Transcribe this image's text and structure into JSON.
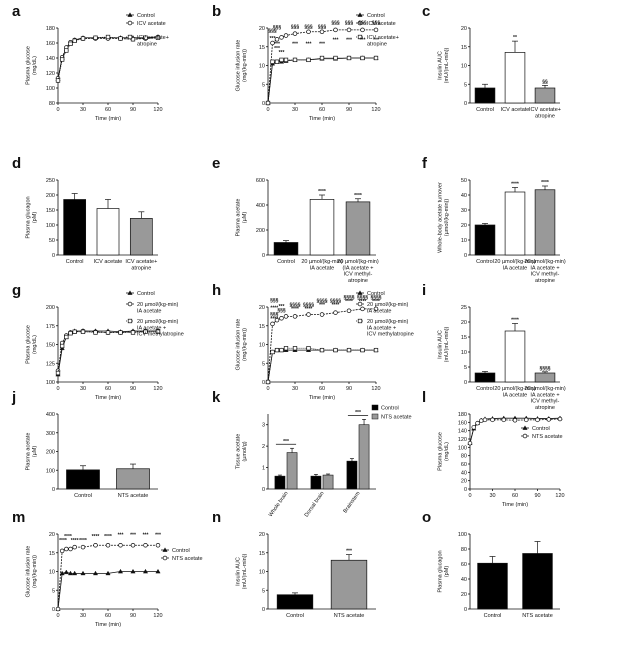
{
  "chart_data": [
    {
      "panel": "a",
      "type": "line",
      "xlabel": "Time (min)",
      "ylabel": "Plasma glucose\n(mg/dL)",
      "xlim": [
        0,
        120
      ],
      "ylim": [
        80,
        180
      ],
      "xticks": [
        0,
        30,
        60,
        90,
        120
      ],
      "yticks": [
        80,
        100,
        120,
        140,
        160,
        180
      ],
      "x": [
        0,
        5,
        10,
        15,
        20,
        30,
        45,
        60,
        75,
        90,
        105,
        120
      ],
      "series": [
        {
          "name": "Control",
          "marker": "filled-triangle",
          "values": [
            112,
            140,
            152,
            160,
            164,
            167,
            167,
            167,
            167,
            167,
            167,
            168
          ]
        },
        {
          "name": "ICV acetate",
          "marker": "open-circle",
          "values": [
            113,
            141,
            154,
            161,
            164,
            166,
            166,
            166,
            166,
            165,
            166,
            168
          ]
        },
        {
          "name": "ICV acetate+\natropine",
          "marker": "open-square",
          "values": [
            110,
            138,
            150,
            159,
            163,
            166,
            167,
            168,
            166,
            165,
            167,
            167
          ]
        }
      ]
    },
    {
      "panel": "b",
      "type": "line",
      "xlabel": "Time (min)",
      "ylabel": "Glucose infusion rate\n(mg/(kg-min))",
      "xlim": [
        0,
        120
      ],
      "ylim": [
        0,
        20
      ],
      "xticks": [
        0,
        30,
        60,
        90,
        120
      ],
      "yticks": [
        0,
        5,
        10,
        15,
        20
      ],
      "x": [
        0,
        5,
        10,
        15,
        20,
        30,
        45,
        60,
        75,
        90,
        105,
        120
      ],
      "series": [
        {
          "name": "Control",
          "marker": "filled-triangle",
          "values": [
            0,
            10.5,
            11,
            11,
            11.2,
            11.5,
            11.5,
            11.8,
            11.8,
            12,
            12,
            12
          ]
        },
        {
          "name": "ICV acetate",
          "marker": "open-circle",
          "values": [
            0,
            16,
            17,
            17.5,
            18,
            18.5,
            19,
            19,
            19.5,
            19.5,
            19.5,
            19.5
          ]
        },
        {
          "name": "ICV acetate+\natropine",
          "marker": "open-square",
          "values": [
            0,
            11,
            11,
            11.5,
            11.5,
            11.5,
            11.5,
            12,
            12,
            12,
            12,
            12
          ]
        }
      ],
      "annotations": [
        {
          "x": 5,
          "y": 18.8,
          "text": "§§§"
        },
        {
          "x": 10,
          "y": 19.8,
          "text": "§§§"
        },
        {
          "x": 5,
          "y": 16.8,
          "text": "***"
        },
        {
          "x": 10,
          "y": 15.3,
          "text": "***"
        },
        {
          "x": 10,
          "y": 14.2,
          "text": "***"
        },
        {
          "x": 15,
          "y": 13.1,
          "text": "***"
        },
        {
          "x": 30,
          "y": 19.9,
          "text": "§§§"
        },
        {
          "x": 45,
          "y": 19.9,
          "text": "§§§"
        },
        {
          "x": 60,
          "y": 19.9,
          "text": "§§§"
        },
        {
          "x": 75,
          "y": 20.9,
          "text": "§§§"
        },
        {
          "x": 90,
          "y": 20.9,
          "text": "§§§"
        },
        {
          "x": 105,
          "y": 20.9,
          "text": "§§§"
        },
        {
          "x": 120,
          "y": 20.9,
          "text": "§§§"
        },
        {
          "x": 30,
          "y": 15.4,
          "text": "***"
        },
        {
          "x": 45,
          "y": 15.4,
          "text": "***"
        },
        {
          "x": 60,
          "y": 15.4,
          "text": "***"
        },
        {
          "x": 75,
          "y": 16.4,
          "text": "***"
        },
        {
          "x": 90,
          "y": 16.4,
          "text": "***"
        },
        {
          "x": 105,
          "y": 16.4,
          "text": "***"
        },
        {
          "x": 120,
          "y": 16.4,
          "text": "***"
        }
      ]
    },
    {
      "panel": "c",
      "type": "bar",
      "ylabel": "Insulin AUC\n(mU/(mL-min))",
      "ylim": [
        0,
        20
      ],
      "yticks": [
        0,
        5,
        10,
        15,
        20
      ],
      "categories": [
        "Control",
        "ICV acetate",
        "ICV acetate+\natropine"
      ],
      "values": [
        4,
        13.5,
        4
      ],
      "errors": [
        1,
        3,
        0.7
      ],
      "fills": [
        "#000000",
        "#ffffff",
        "#999999"
      ],
      "bar_labels": [
        "",
        "**",
        "§§"
      ]
    },
    {
      "panel": "d",
      "type": "bar",
      "ylabel": "Plasma glucagon\n(pM)",
      "ylim": [
        0,
        250
      ],
      "yticks": [
        0,
        50,
        100,
        150,
        200,
        250
      ],
      "categories": [
        "Control",
        "ICV acetate",
        "ICV acetate+\natropine"
      ],
      "values": [
        185,
        155,
        122
      ],
      "errors": [
        20,
        30,
        22
      ],
      "fills": [
        "#000000",
        "#ffffff",
        "#999999"
      ],
      "bar_labels": [
        "",
        "",
        ""
      ]
    },
    {
      "panel": "e",
      "type": "bar",
      "ylabel": "Plasma acetate\n(µM)",
      "ylim": [
        0,
        600
      ],
      "yticks": [
        0,
        200,
        400,
        600
      ],
      "categories": [
        "Control",
        "20 µmol/(kg-min)\nIA acetate",
        "20 µmol/(kg-min)\n(IA acetate +\nICV methyl-\natropine"
      ],
      "values": [
        100,
        445,
        425
      ],
      "errors": [
        15,
        35,
        25
      ],
      "fills": [
        "#000000",
        "#ffffff",
        "#999999"
      ],
      "bar_labels": [
        "",
        "****",
        "****"
      ]
    },
    {
      "panel": "f",
      "type": "bar",
      "ylabel": "Whole-body acetate turnover\n(µmol/(kg-min))",
      "ylim": [
        0,
        50
      ],
      "yticks": [
        0,
        10,
        20,
        30,
        40,
        50
      ],
      "categories": [
        "Control",
        "20 µmol/(kg-min)\nIA acetate",
        "20 µmol/(kg-min)\nIA acetate +\nICV methyl-\natropine"
      ],
      "values": [
        20,
        42,
        43.5
      ],
      "errors": [
        1,
        3,
        2.5
      ],
      "fills": [
        "#000000",
        "#ffffff",
        "#999999"
      ],
      "bar_labels": [
        "",
        "****",
        "****"
      ]
    },
    {
      "panel": "g",
      "type": "line",
      "xlabel": "Time (min)",
      "ylabel": "Plasma glucose\n(mg/dL)",
      "xlim": [
        0,
        120
      ],
      "ylim": [
        100,
        200
      ],
      "xticks": [
        0,
        30,
        60,
        90,
        120
      ],
      "yticks": [
        100,
        125,
        150,
        175,
        200
      ],
      "x": [
        0,
        5,
        10,
        15,
        20,
        30,
        45,
        60,
        75,
        90,
        105,
        120
      ],
      "series": [
        {
          "name": "Control",
          "marker": "filled-triangle",
          "values": [
            110,
            145,
            160,
            166,
            168,
            168,
            168,
            168,
            167,
            168,
            168,
            168
          ]
        },
        {
          "name": "20 µmol/(kg-min)\nIA acetate",
          "marker": "open-circle",
          "values": [
            115,
            152,
            162,
            166,
            167,
            168,
            167,
            166,
            166,
            167,
            168,
            168
          ]
        },
        {
          "name": "20 µmol/(kg-min)\nIA acetate +\nICV methylatropine",
          "marker": "open-square",
          "values": [
            112,
            148,
            160,
            165,
            167,
            167,
            166,
            166,
            166,
            166,
            167,
            167
          ]
        }
      ]
    },
    {
      "panel": "h",
      "type": "line",
      "xlabel": "Time (min)",
      "ylabel": "Glucose infusion rate\n(mg/(kg-min))",
      "xlim": [
        0,
        120
      ],
      "ylim": [
        0,
        20
      ],
      "xticks": [
        0,
        30,
        60,
        90,
        120
      ],
      "yticks": [
        0,
        5,
        10,
        15,
        20
      ],
      "x": [
        0,
        5,
        10,
        15,
        20,
        30,
        45,
        60,
        75,
        90,
        105,
        120
      ],
      "series": [
        {
          "name": "Control",
          "marker": "filled-triangle",
          "values": [
            0,
            8,
            8.5,
            8.5,
            8.5,
            8.5,
            8.5,
            8.5,
            8.5,
            8.5,
            8.5,
            8.5
          ]
        },
        {
          "name": "20 µmol/(kg-min)\nIA acetate",
          "marker": "open-circle",
          "values": [
            0,
            15.5,
            16.5,
            17,
            17.5,
            17.5,
            18,
            18,
            18.5,
            19,
            19.5,
            19.5
          ]
        },
        {
          "name": "20 µmol/(kg-min)\nIA acetate +\nICV methylatropine",
          "marker": "open-square",
          "values": [
            0,
            8,
            8.5,
            8.5,
            9,
            9,
            9,
            8.5,
            8.5,
            8.5,
            8.5,
            8.5
          ]
        }
      ],
      "annotations": [
        {
          "x": 7,
          "y": 21.3,
          "text": "§§§"
        },
        {
          "x": 7,
          "y": 19.4,
          "text": "****"
        },
        {
          "x": 7,
          "y": 17.6,
          "text": "§§§"
        },
        {
          "x": 7,
          "y": 16.4,
          "text": "****"
        },
        {
          "x": 15,
          "y": 19.8,
          "text": "***"
        },
        {
          "x": 15,
          "y": 18.7,
          "text": "§§§"
        },
        {
          "x": 30,
          "y": 20.2,
          "text": "§§§§"
        },
        {
          "x": 45,
          "y": 20.2,
          "text": "§§§§"
        },
        {
          "x": 60,
          "y": 21.2,
          "text": "§§§§"
        },
        {
          "x": 75,
          "y": 21.2,
          "text": "§§§§"
        },
        {
          "x": 90,
          "y": 22.2,
          "text": "§§§§"
        },
        {
          "x": 105,
          "y": 22.2,
          "text": "§§§§"
        },
        {
          "x": 120,
          "y": 22.2,
          "text": "§§§§"
        },
        {
          "x": 30,
          "y": 19.1,
          "text": "****"
        },
        {
          "x": 45,
          "y": 19.1,
          "text": "****"
        },
        {
          "x": 60,
          "y": 20.1,
          "text": "***"
        },
        {
          "x": 75,
          "y": 20.1,
          "text": "****"
        },
        {
          "x": 90,
          "y": 21.1,
          "text": "****"
        },
        {
          "x": 105,
          "y": 21.1,
          "text": "****"
        },
        {
          "x": 120,
          "y": 21.1,
          "text": "****"
        }
      ]
    },
    {
      "panel": "i",
      "type": "bar",
      "ylabel": "Insulin AUC\n(mU/(mL-min))",
      "ylim": [
        0,
        25
      ],
      "yticks": [
        0,
        5,
        10,
        15,
        20,
        25
      ],
      "categories": [
        "Control",
        "20 µmol/(kg-min)\nIA acetate",
        "20 µmol/(kg-min)\nIA acetate +\nICV methyl-\natropine"
      ],
      "values": [
        3,
        17,
        3
      ],
      "errors": [
        0.5,
        2.5,
        0.4
      ],
      "fills": [
        "#000000",
        "#ffffff",
        "#999999"
      ],
      "bar_labels": [
        "",
        "****",
        "§§§§"
      ]
    },
    {
      "panel": "j",
      "type": "bar",
      "ylabel": "Plasma acetate\n(µM)",
      "ylim": [
        0,
        400
      ],
      "yticks": [
        0,
        100,
        200,
        300,
        400
      ],
      "categories": [
        "Control",
        "NTS acetate"
      ],
      "values": [
        102,
        108
      ],
      "errors": [
        22,
        25
      ],
      "fills": [
        "#000000",
        "#999999"
      ],
      "bar_labels": [
        "",
        ""
      ]
    },
    {
      "panel": "k",
      "type": "bar",
      "ylabel": "Tissue acetate\n(µmol/g)",
      "ylim": [
        0,
        3.5
      ],
      "yticks": [
        0,
        1,
        2,
        3
      ],
      "categories": [
        "Whole brain",
        "Dorsal brain",
        "Brainstem"
      ],
      "series": [
        {
          "name": "Control",
          "values": [
            0.6,
            0.6,
            1.3
          ],
          "errors": [
            0.05,
            0.08,
            0.12
          ],
          "fill": "#000000"
        },
        {
          "name": "NTS acetate",
          "values": [
            1.7,
            0.65,
            3.0
          ],
          "errors": [
            0.2,
            0.05,
            0.25
          ],
          "fill": "#999999"
        }
      ],
      "brackets": [
        {
          "category": 0,
          "text": "***"
        },
        {
          "category": 2,
          "text": "***"
        }
      ]
    },
    {
      "panel": "l",
      "type": "line",
      "xlabel": "Time (min)",
      "ylabel": "Plasma glucose\n(mg/dL)",
      "xlim": [
        0,
        120
      ],
      "ylim": [
        0,
        180
      ],
      "xticks": [
        0,
        30,
        60,
        90,
        120
      ],
      "yticks": [
        0,
        20,
        40,
        60,
        80,
        100,
        120,
        140,
        160,
        180
      ],
      "x": [
        0,
        5,
        10,
        15,
        20,
        30,
        45,
        60,
        75,
        90,
        105,
        120
      ],
      "series": [
        {
          "name": "Control",
          "marker": "filled-triangle",
          "values": [
            110,
            145,
            158,
            165,
            168,
            169,
            170,
            170,
            170,
            169,
            169,
            170
          ]
        },
        {
          "name": "NTS acetate",
          "marker": "open-circle",
          "values": [
            110,
            148,
            158,
            164,
            166,
            166,
            166,
            165,
            166,
            166,
            167,
            168
          ]
        }
      ]
    },
    {
      "panel": "m",
      "type": "line",
      "xlabel": "Time (min)",
      "ylabel": "Glucose infusion rate\n(mg/(kg-min))",
      "xlim": [
        0,
        120
      ],
      "ylim": [
        0,
        20
      ],
      "xticks": [
        0,
        30,
        60,
        90,
        120
      ],
      "yticks": [
        0,
        5,
        10,
        15,
        20
      ],
      "x": [
        0,
        5,
        10,
        15,
        20,
        30,
        45,
        60,
        75,
        90,
        105,
        120
      ],
      "series": [
        {
          "name": "Control",
          "marker": "filled-triangle",
          "values": [
            0,
            9.5,
            9.8,
            9.5,
            9.5,
            9.5,
            9.5,
            9.5,
            10,
            10,
            10,
            10
          ]
        },
        {
          "name": "NTS acetate",
          "marker": "open-circle",
          "values": [
            0,
            15.5,
            16,
            16,
            16.5,
            16.5,
            17,
            17,
            17,
            17,
            17,
            17
          ]
        }
      ],
      "annotations": [
        {
          "x": 6,
          "y": 17.9,
          "text": "****"
        },
        {
          "x": 12,
          "y": 18.9,
          "text": "****"
        },
        {
          "x": 20,
          "y": 17.9,
          "text": "****"
        },
        {
          "x": 30,
          "y": 17.9,
          "text": "****"
        },
        {
          "x": 45,
          "y": 18.9,
          "text": "****"
        },
        {
          "x": 60,
          "y": 18.9,
          "text": "****"
        },
        {
          "x": 75,
          "y": 19.4,
          "text": "***"
        },
        {
          "x": 90,
          "y": 19.4,
          "text": "***"
        },
        {
          "x": 105,
          "y": 19.4,
          "text": "***"
        },
        {
          "x": 120,
          "y": 19.4,
          "text": "***"
        }
      ]
    },
    {
      "panel": "n",
      "type": "bar",
      "ylabel": "Insulin AUC\n(mU/(mL-min))",
      "ylim": [
        0,
        20
      ],
      "yticks": [
        0,
        5,
        10,
        15,
        20
      ],
      "categories": [
        "Control",
        "NTS acetate"
      ],
      "values": [
        3.8,
        13
      ],
      "errors": [
        0.5,
        1.5
      ],
      "fills": [
        "#000000",
        "#999999"
      ],
      "bar_labels": [
        "",
        "***"
      ]
    },
    {
      "panel": "o",
      "type": "bar",
      "ylabel": "Plasma glucagon\n(pM)",
      "ylim": [
        0,
        100
      ],
      "yticks": [
        0,
        20,
        40,
        60,
        80,
        100
      ],
      "categories": [
        "Control",
        "NTS acetate"
      ],
      "values": [
        61,
        74
      ],
      "errors": [
        9,
        16
      ],
      "fills": [
        "#000000",
        "#000000"
      ],
      "bar_labels": [
        "",
        ""
      ]
    }
  ]
}
